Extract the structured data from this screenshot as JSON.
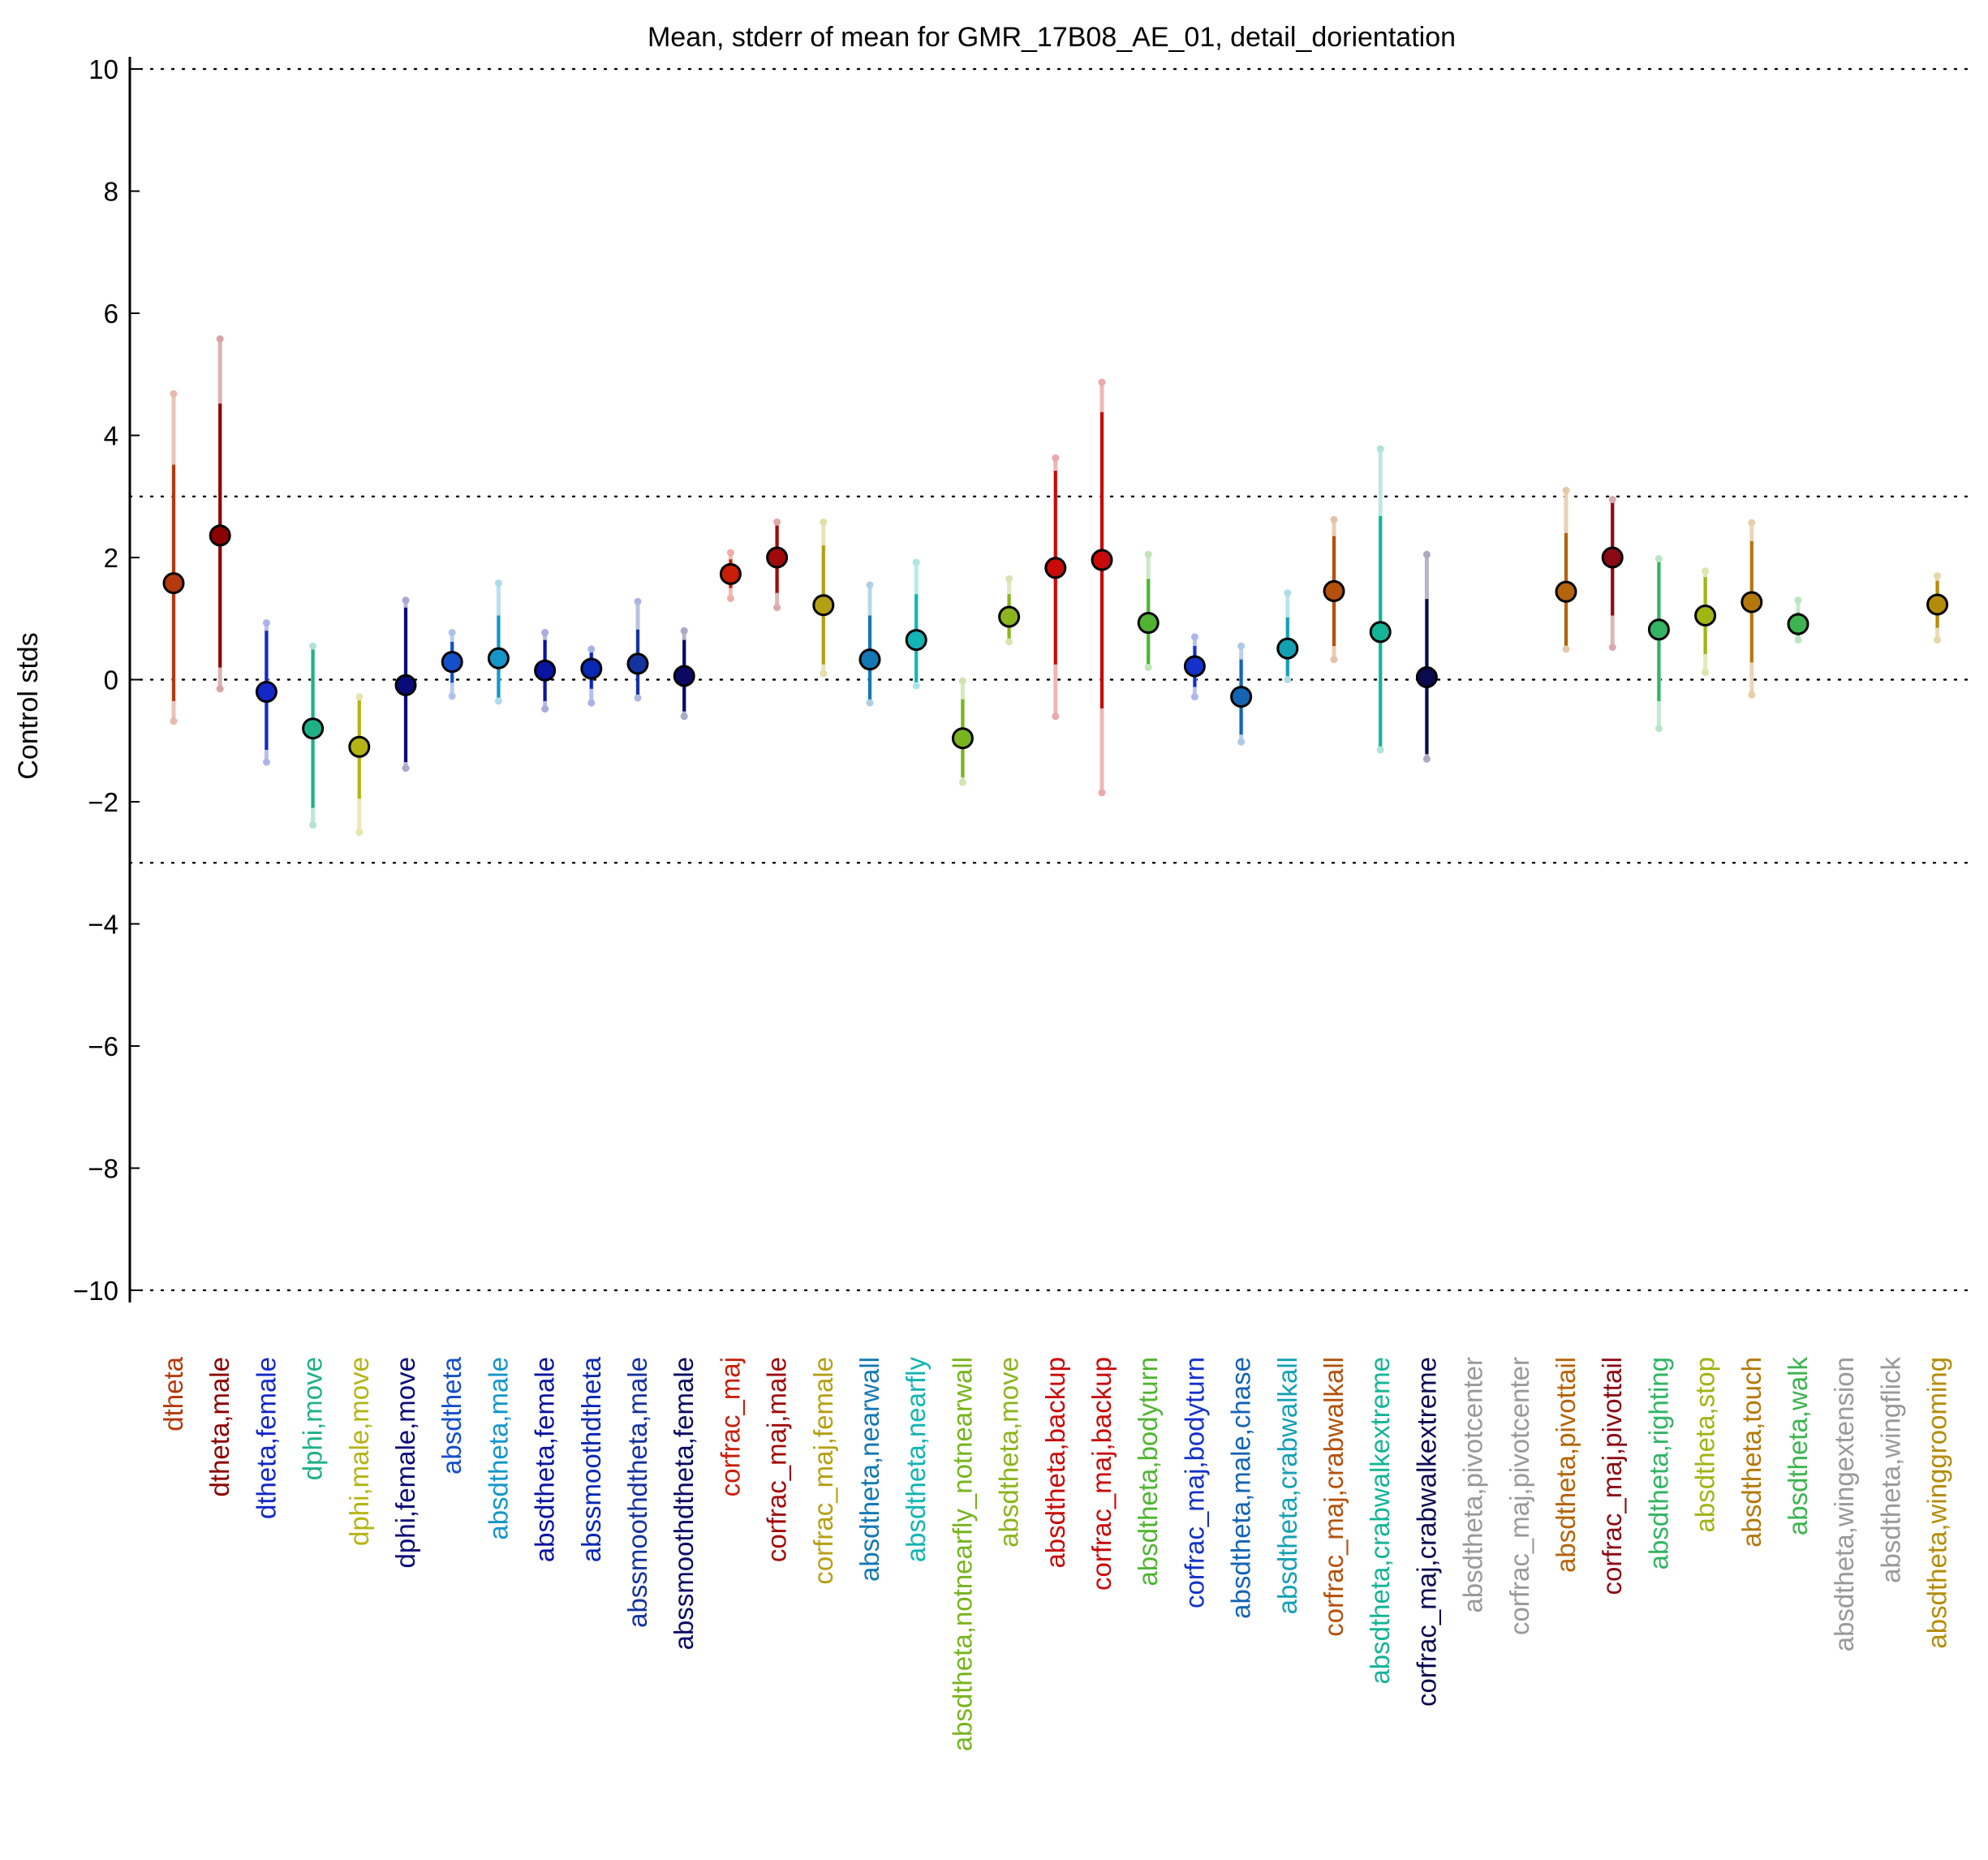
{
  "chart_data": {
    "type": "scatter",
    "title": "Mean, stderr of mean for GMR_17B08_AE_01, detail_dorientation",
    "ylabel": "Control stds",
    "xlabel": "",
    "ylim": [
      -10.2,
      10.2
    ],
    "yticks": [
      -10,
      -8,
      -6,
      -4,
      -2,
      0,
      2,
      4,
      6,
      8,
      10
    ],
    "yticklabels": [
      "−10",
      "−8",
      "−6",
      "−4",
      "−2",
      "0",
      "2",
      "4",
      "6",
      "8",
      "10"
    ],
    "reference_lines": [
      -10,
      -3,
      0,
      3,
      10
    ],
    "grid": false,
    "points": [
      {
        "label": "dtheta",
        "color": "#b43a0e",
        "mean": 1.58,
        "se_lo": -0.35,
        "se_hi": 3.52,
        "ci_lo": -0.68,
        "ci_hi": 4.68
      },
      {
        "label": "dtheta,male",
        "color": "#8b0000",
        "mean": 2.36,
        "se_lo": 0.2,
        "se_hi": 4.52,
        "ci_lo": -0.15,
        "ci_hi": 5.58
      },
      {
        "label": "dtheta,female",
        "color": "#1428c8",
        "mean": -0.2,
        "se_lo": -1.15,
        "se_hi": 0.8,
        "ci_lo": -1.35,
        "ci_hi": 0.93
      },
      {
        "label": "dphi,move",
        "color": "#1fb088",
        "mean": -0.8,
        "se_lo": -2.1,
        "se_hi": 0.5,
        "ci_lo": -2.38,
        "ci_hi": 0.55
      },
      {
        "label": "dphi,male,move",
        "color": "#b4b414",
        "mean": -1.1,
        "se_lo": -1.95,
        "se_hi": -0.28,
        "ci_lo": -2.5,
        "ci_hi": -0.28
      },
      {
        "label": "dphi,female,move",
        "color": "#0a0a78",
        "mean": -0.09,
        "se_lo": -1.35,
        "se_hi": 1.18,
        "ci_lo": -1.45,
        "ci_hi": 1.3
      },
      {
        "label": "absdtheta",
        "color": "#1450c8",
        "mean": 0.29,
        "se_lo": -0.05,
        "se_hi": 0.62,
        "ci_lo": -0.27,
        "ci_hi": 0.77
      },
      {
        "label": "absdtheta,male",
        "color": "#1496c8",
        "mean": 0.35,
        "se_lo": -0.35,
        "se_hi": 1.05,
        "ci_lo": -0.35,
        "ci_hi": 1.58
      },
      {
        "label": "absdtheta,female",
        "color": "#0a14a0",
        "mean": 0.15,
        "se_lo": -0.35,
        "se_hi": 0.65,
        "ci_lo": -0.48,
        "ci_hi": 0.77
      },
      {
        "label": "abssmoothdtheta",
        "color": "#0a28b4",
        "mean": 0.18,
        "se_lo": -0.15,
        "se_hi": 0.5,
        "ci_lo": -0.38,
        "ci_hi": 0.5
      },
      {
        "label": "abssmoothdtheta,male",
        "color": "#1432a0",
        "mean": 0.26,
        "se_lo": -0.3,
        "se_hi": 0.82,
        "ci_lo": -0.3,
        "ci_hi": 1.28
      },
      {
        "label": "abssmoothdtheta,female",
        "color": "#0a0a64",
        "mean": 0.06,
        "se_lo": -0.52,
        "se_hi": 0.65,
        "ci_lo": -0.6,
        "ci_hi": 0.8
      },
      {
        "label": "corfrac_maj",
        "color": "#c81e0a",
        "mean": 1.73,
        "se_lo": 1.5,
        "se_hi": 1.97,
        "ci_lo": 1.33,
        "ci_hi": 2.08
      },
      {
        "label": "corfrac_maj,male",
        "color": "#a00a0a",
        "mean": 2.0,
        "se_lo": 1.42,
        "se_hi": 2.58,
        "ci_lo": 1.18,
        "ci_hi": 2.58
      },
      {
        "label": "corfrac_maj,female",
        "color": "#b4a014",
        "mean": 1.22,
        "se_lo": 0.25,
        "se_hi": 2.2,
        "ci_lo": 0.1,
        "ci_hi": 2.58
      },
      {
        "label": "absdtheta,nearwall",
        "color": "#1478b4",
        "mean": 0.33,
        "se_lo": -0.38,
        "se_hi": 1.05,
        "ci_lo": -0.38,
        "ci_hi": 1.55
      },
      {
        "label": "absdtheta,nearfly",
        "color": "#14b4b4",
        "mean": 0.65,
        "se_lo": -0.1,
        "se_hi": 1.4,
        "ci_lo": -0.1,
        "ci_hi": 1.92
      },
      {
        "label": "absdtheta,notnearfly_notnearwall",
        "color": "#78b41e",
        "mean": -0.96,
        "se_lo": -1.6,
        "se_hi": -0.32,
        "ci_lo": -1.68,
        "ci_hi": -0.02
      },
      {
        "label": "absdtheta,move",
        "color": "#8cb41e",
        "mean": 1.03,
        "se_lo": 0.65,
        "se_hi": 1.4,
        "ci_lo": 0.62,
        "ci_hi": 1.65
      },
      {
        "label": "absdtheta,backup",
        "color": "#c80a0a",
        "mean": 1.83,
        "se_lo": 0.25,
        "se_hi": 3.42,
        "ci_lo": -0.6,
        "ci_hi": 3.63
      },
      {
        "label": "corfrac_maj,backup",
        "color": "#c80a0a",
        "mean": 1.96,
        "se_lo": -0.47,
        "se_hi": 4.38,
        "ci_lo": -1.85,
        "ci_hi": 4.87
      },
      {
        "label": "absdtheta,bodyturn",
        "color": "#50b432",
        "mean": 0.93,
        "se_lo": 0.2,
        "se_hi": 1.65,
        "ci_lo": 0.2,
        "ci_hi": 2.05
      },
      {
        "label": "corfrac_maj,bodyturn",
        "color": "#1432c8",
        "mean": 0.22,
        "se_lo": -0.12,
        "se_hi": 0.55,
        "ci_lo": -0.28,
        "ci_hi": 0.7
      },
      {
        "label": "absdtheta,male,chase",
        "color": "#1464b4",
        "mean": -0.28,
        "se_lo": -0.9,
        "se_hi": 0.33,
        "ci_lo": -1.02,
        "ci_hi": 0.55
      },
      {
        "label": "absdtheta,crabwalkall",
        "color": "#14a0b4",
        "mean": 0.51,
        "se_lo": 0.0,
        "se_hi": 1.02,
        "ci_lo": 0.0,
        "ci_hi": 1.42
      },
      {
        "label": "corfrac_maj,crabwalkall",
        "color": "#b4500a",
        "mean": 1.45,
        "se_lo": 0.55,
        "se_hi": 2.35,
        "ci_lo": 0.33,
        "ci_hi": 2.62
      },
      {
        "label": "absdtheta,crabwalkextreme",
        "color": "#14b496",
        "mean": 0.78,
        "se_lo": -1.15,
        "se_hi": 2.68,
        "ci_lo": -1.15,
        "ci_hi": 3.78
      },
      {
        "label": "corfrac_maj,crabwalkextreme",
        "color": "#0a0a50",
        "mean": 0.04,
        "se_lo": -1.22,
        "se_hi": 1.32,
        "ci_lo": -1.3,
        "ci_hi": 2.05
      },
      {
        "label": "absdtheta,pivotcenter",
        "color": "#999999"
      },
      {
        "label": "corfrac_maj,pivotcenter",
        "color": "#999999"
      },
      {
        "label": "absdtheta,pivottail",
        "color": "#b4640a",
        "mean": 1.44,
        "se_lo": 0.5,
        "se_hi": 2.4,
        "ci_lo": 0.5,
        "ci_hi": 3.1
      },
      {
        "label": "corfrac_maj,pivottail",
        "color": "#8c0a14",
        "mean": 2.0,
        "se_lo": 1.05,
        "se_hi": 2.95,
        "ci_lo": 0.53,
        "ci_hi": 2.95
      },
      {
        "label": "absdtheta,righting",
        "color": "#32b464",
        "mean": 0.82,
        "se_lo": -0.35,
        "se_hi": 1.98,
        "ci_lo": -0.8,
        "ci_hi": 1.98
      },
      {
        "label": "absdtheta,stop",
        "color": "#a0b414",
        "mean": 1.05,
        "se_lo": 0.42,
        "se_hi": 1.68,
        "ci_lo": 0.12,
        "ci_hi": 1.78
      },
      {
        "label": "absdtheta,touch",
        "color": "#b4780a",
        "mean": 1.27,
        "se_lo": 0.28,
        "se_hi": 2.27,
        "ci_lo": -0.25,
        "ci_hi": 2.57
      },
      {
        "label": "absdtheta,walk",
        "color": "#3cb450",
        "mean": 0.91,
        "se_lo": 0.72,
        "se_hi": 1.1,
        "ci_lo": 0.65,
        "ci_hi": 1.3
      },
      {
        "label": "absdtheta,wingextension",
        "color": "#999999"
      },
      {
        "label": "absdtheta,wingflick",
        "color": "#999999"
      },
      {
        "label": "absdtheta,winggrooming",
        "color": "#b48c0a",
        "mean": 1.23,
        "se_lo": 0.85,
        "se_hi": 1.62,
        "ci_lo": 0.65,
        "ci_hi": 1.7
      }
    ]
  }
}
